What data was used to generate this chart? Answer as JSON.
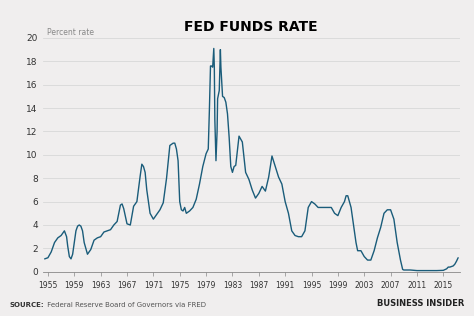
{
  "title": "FED FUNDS RATE",
  "ylabel": "Percent rate",
  "source_label": "SOURCE:",
  "source_text": " Federal Reserve Board of Governors via FRED",
  "watermark": "BUSINESS INSIDER",
  "line_color": "#1a5c7a",
  "background_color": "#f0eeee",
  "plot_bg_color": "#f0eeee",
  "grid_color": "#d8d8d8",
  "ylim": [
    0,
    20
  ],
  "yticks": [
    0,
    2,
    4,
    6,
    8,
    10,
    12,
    14,
    16,
    18,
    20
  ],
  "xtick_years": [
    1955,
    1959,
    1963,
    1967,
    1971,
    1975,
    1979,
    1983,
    1987,
    1991,
    1995,
    1999,
    2003,
    2007,
    2011,
    2015
  ],
  "xlim": [
    1954.2,
    2017.5
  ],
  "data": [
    [
      1954.5,
      1.1
    ],
    [
      1955.0,
      1.2
    ],
    [
      1955.5,
      1.7
    ],
    [
      1956.0,
      2.5
    ],
    [
      1956.5,
      2.9
    ],
    [
      1957.0,
      3.1
    ],
    [
      1957.5,
      3.5
    ],
    [
      1957.83,
      3.0
    ],
    [
      1958.0,
      2.2
    ],
    [
      1958.25,
      1.3
    ],
    [
      1958.5,
      1.1
    ],
    [
      1958.75,
      1.5
    ],
    [
      1959.0,
      2.5
    ],
    [
      1959.25,
      3.5
    ],
    [
      1959.5,
      3.9
    ],
    [
      1959.75,
      4.0
    ],
    [
      1960.0,
      3.9
    ],
    [
      1960.25,
      3.5
    ],
    [
      1960.5,
      2.5
    ],
    [
      1960.75,
      2.0
    ],
    [
      1961.0,
      1.5
    ],
    [
      1961.5,
      1.9
    ],
    [
      1962.0,
      2.7
    ],
    [
      1962.5,
      2.9
    ],
    [
      1963.0,
      3.0
    ],
    [
      1963.5,
      3.4
    ],
    [
      1964.0,
      3.5
    ],
    [
      1964.5,
      3.6
    ],
    [
      1965.0,
      4.0
    ],
    [
      1965.5,
      4.3
    ],
    [
      1966.0,
      5.7
    ],
    [
      1966.25,
      5.8
    ],
    [
      1966.5,
      5.4
    ],
    [
      1967.0,
      4.1
    ],
    [
      1967.5,
      4.0
    ],
    [
      1968.0,
      5.6
    ],
    [
      1968.5,
      6.0
    ],
    [
      1969.0,
      8.2
    ],
    [
      1969.25,
      9.2
    ],
    [
      1969.5,
      9.0
    ],
    [
      1969.75,
      8.5
    ],
    [
      1970.0,
      7.0
    ],
    [
      1970.5,
      5.0
    ],
    [
      1971.0,
      4.5
    ],
    [
      1971.5,
      4.9
    ],
    [
      1972.0,
      5.3
    ],
    [
      1972.5,
      5.9
    ],
    [
      1973.0,
      8.0
    ],
    [
      1973.5,
      10.8
    ],
    [
      1974.0,
      11.0
    ],
    [
      1974.25,
      11.0
    ],
    [
      1974.5,
      10.5
    ],
    [
      1974.75,
      9.5
    ],
    [
      1975.0,
      6.0
    ],
    [
      1975.25,
      5.3
    ],
    [
      1975.5,
      5.2
    ],
    [
      1975.75,
      5.5
    ],
    [
      1976.0,
      5.0
    ],
    [
      1976.5,
      5.2
    ],
    [
      1977.0,
      5.5
    ],
    [
      1977.5,
      6.2
    ],
    [
      1978.0,
      7.5
    ],
    [
      1978.5,
      9.0
    ],
    [
      1979.0,
      10.1
    ],
    [
      1979.33,
      10.5
    ],
    [
      1979.5,
      13.8
    ],
    [
      1979.67,
      17.6
    ],
    [
      1979.83,
      17.6
    ],
    [
      1980.0,
      17.5
    ],
    [
      1980.17,
      19.1
    ],
    [
      1980.25,
      17.5
    ],
    [
      1980.33,
      13.0
    ],
    [
      1980.5,
      9.5
    ],
    [
      1980.67,
      12.0
    ],
    [
      1980.75,
      14.8
    ],
    [
      1981.0,
      15.5
    ],
    [
      1981.17,
      19.0
    ],
    [
      1981.25,
      17.5
    ],
    [
      1981.5,
      15.0
    ],
    [
      1981.75,
      14.9
    ],
    [
      1982.0,
      14.5
    ],
    [
      1982.25,
      13.5
    ],
    [
      1982.5,
      11.5
    ],
    [
      1982.75,
      9.0
    ],
    [
      1983.0,
      8.5
    ],
    [
      1983.25,
      9.0
    ],
    [
      1983.5,
      9.1
    ],
    [
      1984.0,
      11.6
    ],
    [
      1984.5,
      11.1
    ],
    [
      1985.0,
      8.5
    ],
    [
      1985.5,
      7.9
    ],
    [
      1986.0,
      7.0
    ],
    [
      1986.5,
      6.3
    ],
    [
      1987.0,
      6.7
    ],
    [
      1987.5,
      7.3
    ],
    [
      1988.0,
      6.9
    ],
    [
      1988.5,
      8.1
    ],
    [
      1989.0,
      9.9
    ],
    [
      1989.5,
      9.0
    ],
    [
      1990.0,
      8.1
    ],
    [
      1990.5,
      7.5
    ],
    [
      1991.0,
      6.0
    ],
    [
      1991.5,
      5.0
    ],
    [
      1992.0,
      3.5
    ],
    [
      1992.5,
      3.1
    ],
    [
      1993.0,
      3.0
    ],
    [
      1993.5,
      3.0
    ],
    [
      1994.0,
      3.5
    ],
    [
      1994.5,
      5.5
    ],
    [
      1995.0,
      6.0
    ],
    [
      1995.5,
      5.8
    ],
    [
      1996.0,
      5.5
    ],
    [
      1996.5,
      5.5
    ],
    [
      1997.0,
      5.5
    ],
    [
      1997.5,
      5.5
    ],
    [
      1998.0,
      5.5
    ],
    [
      1998.5,
      5.0
    ],
    [
      1999.0,
      4.8
    ],
    [
      1999.5,
      5.5
    ],
    [
      2000.0,
      6.0
    ],
    [
      2000.25,
      6.5
    ],
    [
      2000.5,
      6.5
    ],
    [
      2001.0,
      5.5
    ],
    [
      2001.5,
      3.5
    ],
    [
      2001.75,
      2.5
    ],
    [
      2002.0,
      1.8
    ],
    [
      2002.5,
      1.8
    ],
    [
      2003.0,
      1.3
    ],
    [
      2003.5,
      1.0
    ],
    [
      2004.0,
      1.0
    ],
    [
      2004.5,
      1.8
    ],
    [
      2005.0,
      2.9
    ],
    [
      2005.5,
      3.8
    ],
    [
      2006.0,
      5.0
    ],
    [
      2006.5,
      5.3
    ],
    [
      2007.0,
      5.3
    ],
    [
      2007.5,
      4.5
    ],
    [
      2008.0,
      2.5
    ],
    [
      2008.5,
      1.0
    ],
    [
      2008.83,
      0.2
    ],
    [
      2009.0,
      0.15
    ],
    [
      2010.0,
      0.15
    ],
    [
      2011.0,
      0.1
    ],
    [
      2012.0,
      0.1
    ],
    [
      2013.0,
      0.1
    ],
    [
      2014.0,
      0.1
    ],
    [
      2015.0,
      0.12
    ],
    [
      2015.5,
      0.25
    ],
    [
      2015.75,
      0.4
    ],
    [
      2016.0,
      0.4
    ],
    [
      2016.5,
      0.5
    ],
    [
      2016.75,
      0.65
    ],
    [
      2017.0,
      0.9
    ],
    [
      2017.25,
      1.2
    ]
  ]
}
